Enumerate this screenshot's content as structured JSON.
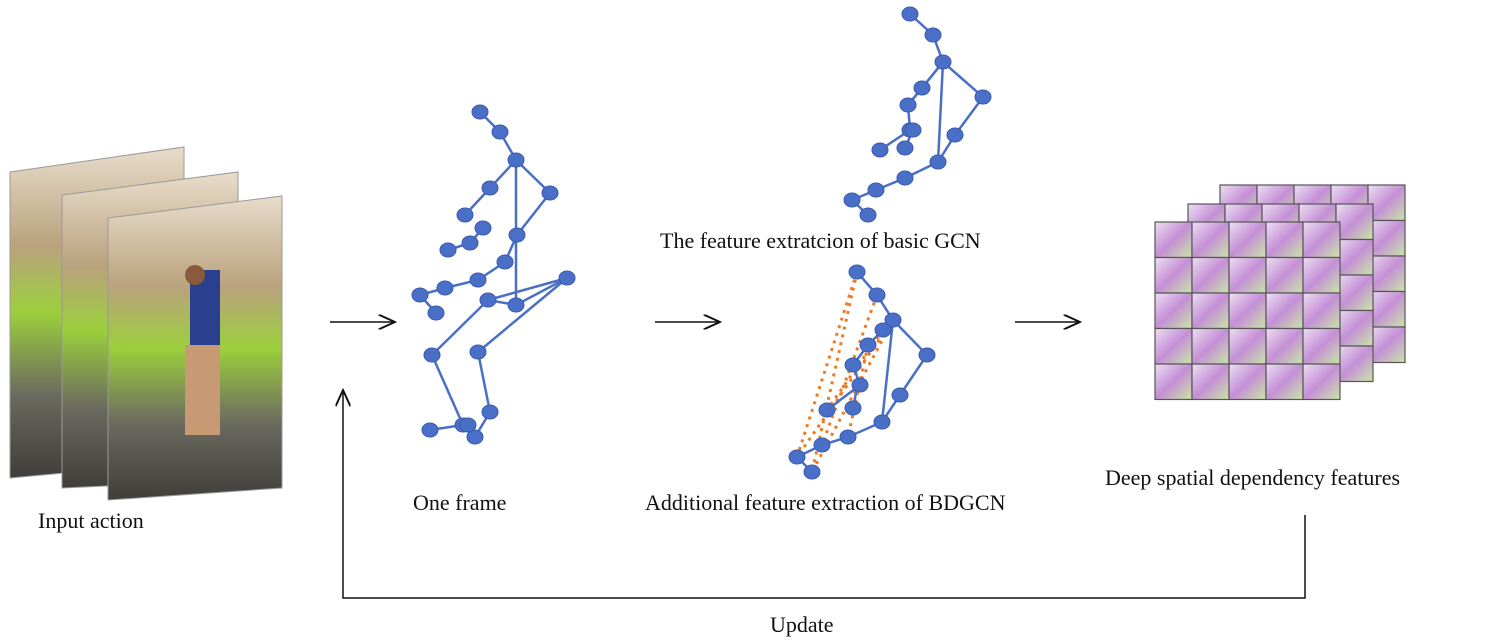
{
  "labels": {
    "input": "Input action",
    "frame": "One frame",
    "basic": "The feature extratcion of basic GCN",
    "additional": "Additional feature extraction of BDGCN",
    "deep": "Deep spatial dependency features",
    "update": "Update"
  }
}
